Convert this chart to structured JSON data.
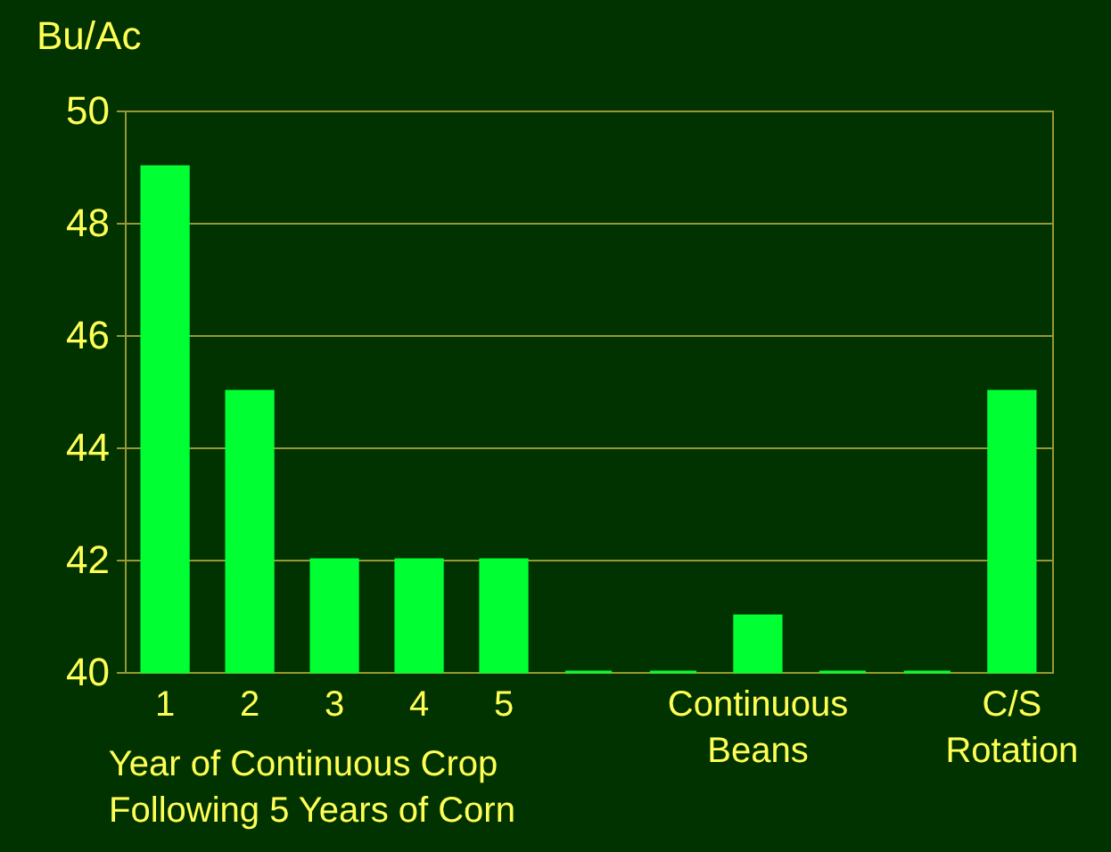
{
  "chart_data": {
    "type": "bar",
    "ylabel": "Bu/Ac",
    "categories": [
      "1",
      "2",
      "3",
      "4",
      "5",
      null,
      null,
      "Continuous Beans",
      null,
      null,
      "C/S Rotation"
    ],
    "values": [
      49,
      45,
      42,
      42,
      42,
      40,
      40,
      41,
      40,
      40,
      45
    ],
    "color": "#00ff33",
    "ylim": [
      40,
      50
    ],
    "yticks": [
      40,
      42,
      44,
      46,
      48,
      50
    ],
    "grid": "y",
    "annotations": [
      "Year of Continuous Crop",
      "Following 5 Years of Corn"
    ]
  }
}
